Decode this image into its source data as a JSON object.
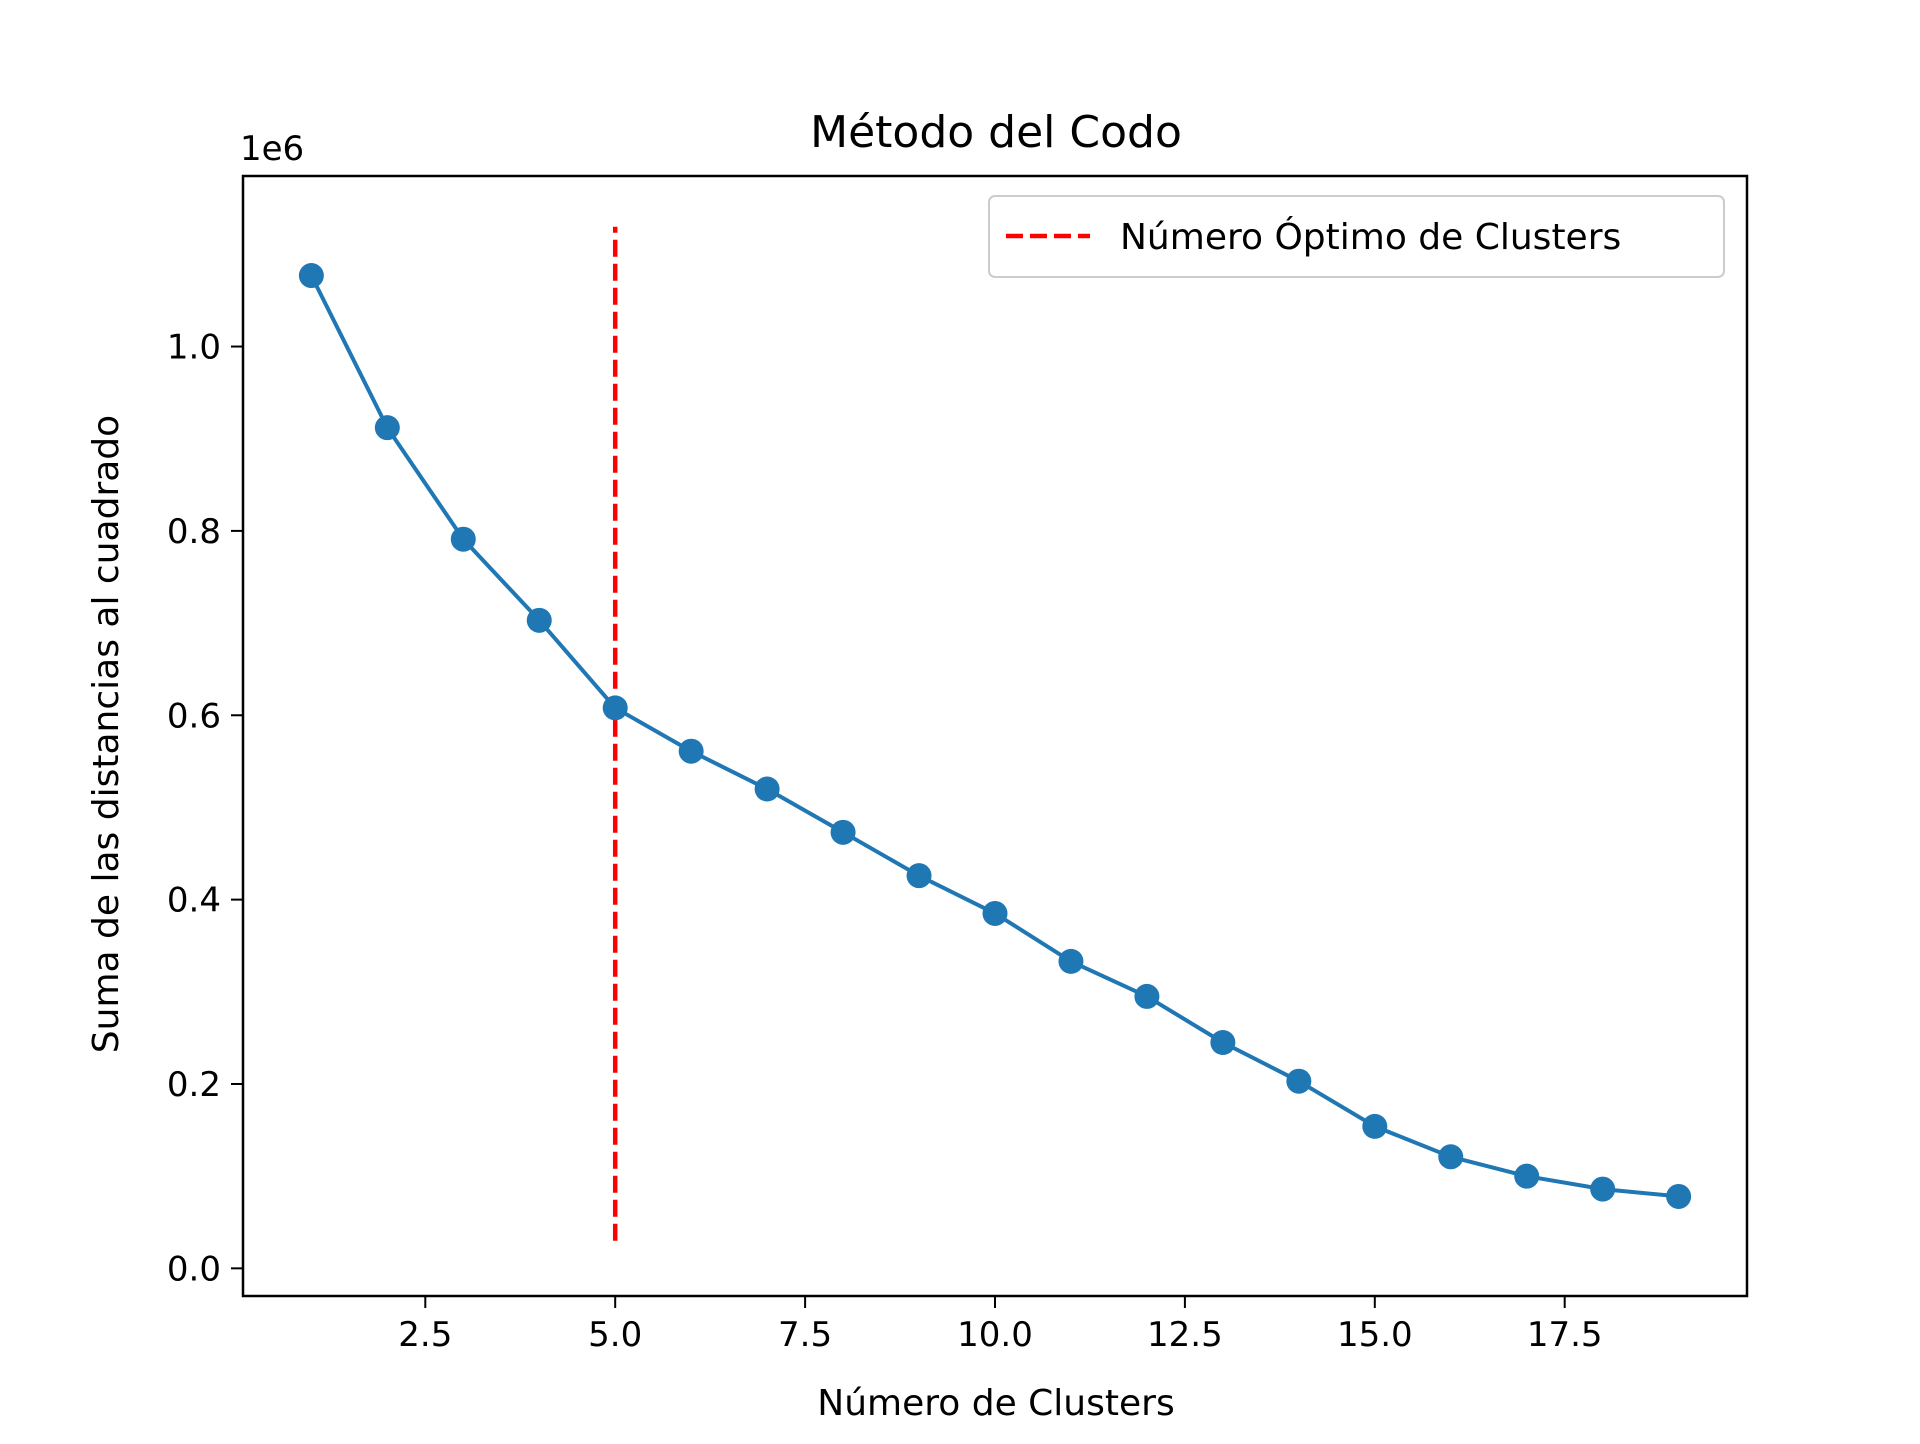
{
  "chart_data": {
    "type": "line",
    "title": "Método del Codo",
    "xlabel": "Número de Clusters",
    "ylabel": "Suma de las distancias al cuadrado",
    "y_offset_label": "1e6",
    "xlim": [
      0.1,
      19.9
    ],
    "ylim": [
      -0.03,
      1.185
    ],
    "x_ticks": [
      2.5,
      5.0,
      7.5,
      10.0,
      12.5,
      15.0,
      17.5
    ],
    "x_tick_labels": [
      "2.5",
      "5.0",
      "7.5",
      "10.0",
      "12.5",
      "15.0",
      "17.5"
    ],
    "y_ticks": [
      0.0,
      0.2,
      0.4,
      0.6,
      0.8,
      1.0
    ],
    "y_tick_labels": [
      "0.0",
      "0.2",
      "0.4",
      "0.6",
      "0.8",
      "1.0"
    ],
    "grid": false,
    "legend_position": "top-right",
    "series": [
      {
        "color": "#1f77b4",
        "marker": "circle",
        "x": [
          1,
          2,
          3,
          4,
          5,
          6,
          7,
          8,
          9,
          10,
          11,
          12,
          13,
          14,
          15,
          16,
          17,
          18,
          19
        ],
        "values": [
          1.077,
          0.912,
          0.791,
          0.703,
          0.608,
          0.561,
          0.52,
          0.473,
          0.426,
          0.385,
          0.333,
          0.295,
          0.245,
          0.203,
          0.154,
          0.121,
          0.1,
          0.086,
          0.078
        ]
      }
    ],
    "reference_lines": [
      {
        "type": "vertical",
        "x": 5,
        "y_from": 0.03,
        "y_to": 1.13,
        "color": "#ff0000",
        "style": "dashed",
        "name": "Número Óptimo de Clusters"
      }
    ]
  }
}
